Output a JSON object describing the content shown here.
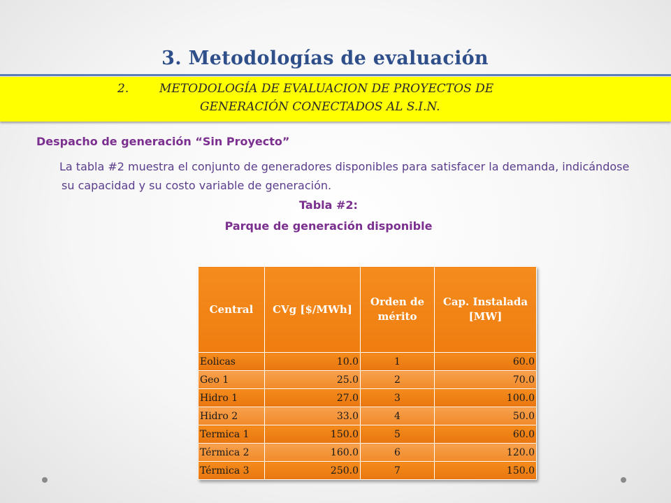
{
  "slide": {
    "title": "3. Metodologías de evaluación",
    "banner": {
      "number": "2.",
      "line1": "METODOLOGÍA DE EVALUACION DE PROYECTOS DE",
      "line2": "GENERACIÓN CONECTADOS AL S.I.N."
    },
    "subheading": "Despacho de generación “Sin Proyecto”",
    "paragraph": "La tabla #2 muestra el conjunto de generadores disponibles para satisfacer la demanda, indicándose su capacidad y su costo variable de generación.",
    "table_caption": "Tabla #2:",
    "table_subcaption": "Parque de generación disponible"
  },
  "table": {
    "headers": [
      "Central",
      "CVg [$/MWh]",
      "Orden de mérito",
      "Cap. Instalada [MW]"
    ],
    "rows": [
      [
        "Eolicas",
        "10.0",
        "1",
        "60.0"
      ],
      [
        "Geo 1",
        "25.0",
        "2",
        "70.0"
      ],
      [
        "Hidro 1",
        "27.0",
        "3",
        "100.0"
      ],
      [
        "Hidro 2",
        "33.0",
        "4",
        "50.0"
      ],
      [
        "Termica 1",
        "150.0",
        "5",
        "60.0"
      ],
      [
        "Térmica 2",
        "160.0",
        "6",
        "120.0"
      ],
      [
        "Térmica 3",
        "250.0",
        "7",
        "150.0"
      ]
    ]
  },
  "colors": {
    "title": "#2e4f8a",
    "banner": "#ffff00",
    "accent_text": "#7b2f8f",
    "table_orange": "#f0821a"
  }
}
